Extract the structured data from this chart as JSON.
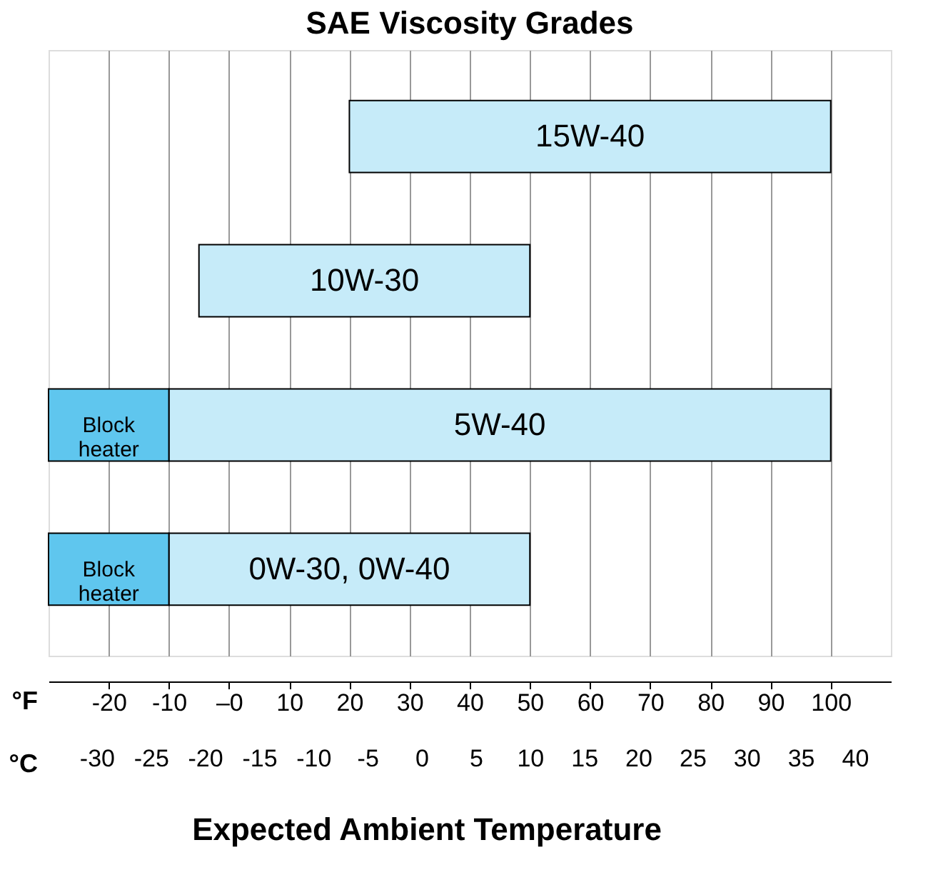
{
  "chart_data": {
    "type": "bar",
    "orientation": "horizontal",
    "title": "SAE Viscosity Grades",
    "categories": [
      "15W-40",
      "10W-30",
      "5W-40",
      "0W-30, 0W-40"
    ],
    "series": [
      {
        "color": "#c6ebf9",
        "base": [
          20,
          -5,
          -10,
          -10
        ],
        "values": [
          80,
          55,
          110,
          60
        ]
      },
      {
        "name": "Block heater",
        "color": "#5fc6ee",
        "base": [
          null,
          null,
          -30,
          -30
        ],
        "values": [
          null,
          null,
          20,
          20
        ]
      }
    ],
    "xlim": [
      -30,
      110
    ],
    "xticks": [
      -20,
      -10,
      {
        "value": 0,
        "label": "–0"
      },
      10,
      20,
      30,
      40,
      50,
      60,
      70,
      80,
      90,
      100
    ],
    "xlabel": "°F",
    "x2lim": [
      -34.44,
      43.33
    ],
    "x2ticks": [
      -30,
      -25,
      -20,
      -15,
      -10,
      -5,
      0,
      5,
      10,
      15,
      20,
      25,
      30,
      35,
      40
    ],
    "x2label": "°C",
    "grid": "x",
    "tick_labels": "x",
    "annotations": [
      "Expected Ambient Temperature"
    ]
  }
}
